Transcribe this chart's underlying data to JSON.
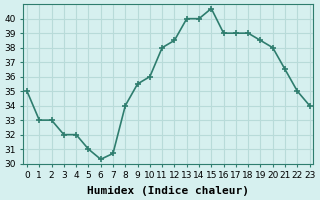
{
  "x": [
    0,
    1,
    2,
    3,
    4,
    5,
    6,
    7,
    8,
    9,
    10,
    11,
    12,
    13,
    14,
    15,
    16,
    17,
    18,
    19,
    20,
    21,
    22,
    23
  ],
  "y": [
    35,
    33,
    33,
    32,
    32,
    31,
    30.3,
    30.7,
    34,
    35.5,
    36,
    38,
    38.5,
    40,
    40,
    40.7,
    39,
    39,
    39,
    38.5,
    38,
    36.5,
    35,
    34
  ],
  "xlabel": "Humidex (Indice chaleur)",
  "ylabel": "",
  "ylim": [
    30,
    41
  ],
  "xlim": [
    0,
    23
  ],
  "yticks": [
    30,
    31,
    32,
    33,
    34,
    35,
    36,
    37,
    38,
    39,
    40
  ],
  "xticks": [
    0,
    1,
    2,
    3,
    4,
    5,
    6,
    7,
    8,
    9,
    10,
    11,
    12,
    13,
    14,
    15,
    16,
    17,
    18,
    19,
    20,
    21,
    22,
    23
  ],
  "line_color": "#2e7d6e",
  "marker": "+",
  "bg_color": "#d6f0ef",
  "grid_color": "#b8dbd9",
  "tick_fontsize": 6.5,
  "xlabel_fontsize": 8,
  "marker_size": 5,
  "linewidth": 1.2
}
